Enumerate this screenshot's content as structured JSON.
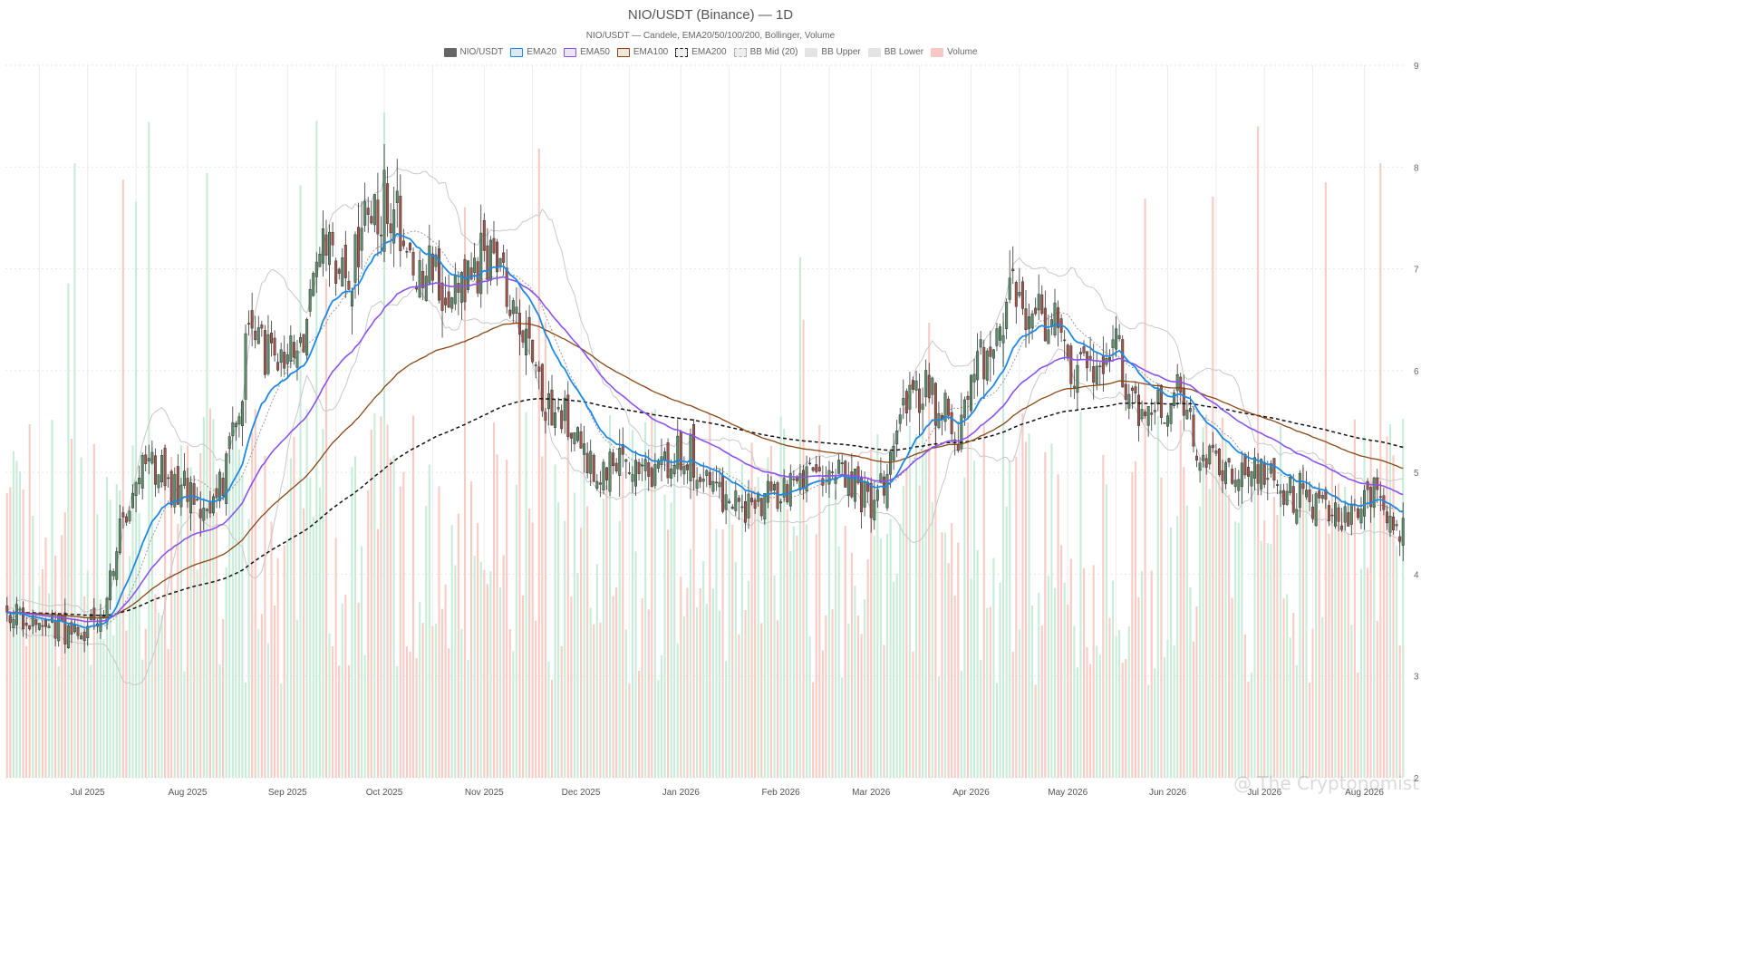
{
  "title": "NIO/USDT (Binance) — 1D",
  "subtitle": "NIO/USDT — Candele, EMA20/50/100/200, Bollinger, Volume",
  "watermark": "@ The Cryptonomist",
  "legend": [
    {
      "label": "NIO/USDT",
      "fill": "#666666",
      "stroke": "#666666",
      "dash": false
    },
    {
      "label": "EMA20",
      "fill": "#dbe9f7",
      "stroke": "#1e88e5",
      "dash": false
    },
    {
      "label": "EMA50",
      "fill": "#ece4fb",
      "stroke": "#8c52f0",
      "dash": false
    },
    {
      "label": "EMA100",
      "fill": "#f1e6de",
      "stroke": "#8b4513",
      "dash": false
    },
    {
      "label": "EMA200",
      "fill": "#eeeeee",
      "stroke": "#111111",
      "dash": true
    },
    {
      "label": "BB Mid (20)",
      "fill": "#eeeeee",
      "stroke": "#aaaaaa",
      "dash": true
    },
    {
      "label": "BB Upper",
      "fill": "#e4e4e4",
      "stroke": "#e4e4e4",
      "dash": false
    },
    {
      "label": "BB Lower",
      "fill": "#e4e4e4",
      "stroke": "#e4e4e4",
      "dash": false
    },
    {
      "label": "Volume",
      "fill": "#f8c9c4",
      "stroke": "#f8c9c4",
      "dash": false
    }
  ],
  "chart_data": {
    "type": "candlestick",
    "x_ticks": [
      "Jul 2025",
      "Aug 2025",
      "Sep 2025",
      "Oct 2025",
      "Nov 2025",
      "Dec 2025",
      "Jan 2026",
      "Feb 2026",
      "Mar 2026",
      "Apr 2026",
      "May 2026",
      "Jun 2026",
      "Jul 2026",
      "Aug 2026"
    ],
    "y_ticks": [
      2,
      3,
      4,
      5,
      6,
      7,
      8,
      9
    ],
    "ylim": [
      2,
      9
    ],
    "axis_position": "right",
    "grid": true,
    "colors": {
      "up": "#5a8f6a",
      "down": "#a4544a",
      "vol_up": "#c9ecd8",
      "vol_down": "#f8cbc5",
      "ema20": "#1e88e5",
      "ema50": "#8c52f0",
      "ema100": "#8b4513",
      "ema200": "#111111",
      "bb_band": "#c8c8c8",
      "bb_mid": "#9a9a9a"
    },
    "close_anchors": [
      {
        "date": "2025-06-10",
        "v": 3.62
      },
      {
        "date": "2025-06-20",
        "v": 3.48
      },
      {
        "date": "2025-06-30",
        "v": 3.5
      },
      {
        "date": "2025-07-05",
        "v": 3.55
      },
      {
        "date": "2025-07-12",
        "v": 4.55
      },
      {
        "date": "2025-07-20",
        "v": 5.1
      },
      {
        "date": "2025-07-28",
        "v": 4.85
      },
      {
        "date": "2025-08-05",
        "v": 4.65
      },
      {
        "date": "2025-08-12",
        "v": 4.9
      },
      {
        "date": "2025-08-20",
        "v": 6.3
      },
      {
        "date": "2025-08-28",
        "v": 6.1
      },
      {
        "date": "2025-09-05",
        "v": 6.2
      },
      {
        "date": "2025-09-12",
        "v": 7.2
      },
      {
        "date": "2025-09-20",
        "v": 7.0
      },
      {
        "date": "2025-09-26",
        "v": 7.7
      },
      {
        "date": "2025-10-05",
        "v": 7.5
      },
      {
        "date": "2025-10-12",
        "v": 6.9
      },
      {
        "date": "2025-10-20",
        "v": 6.85
      },
      {
        "date": "2025-10-28",
        "v": 6.95
      },
      {
        "date": "2025-11-04",
        "v": 7.2
      },
      {
        "date": "2025-11-10",
        "v": 6.7
      },
      {
        "date": "2025-11-15",
        "v": 6.2
      },
      {
        "date": "2025-11-21",
        "v": 5.6
      },
      {
        "date": "2025-11-28",
        "v": 5.5
      },
      {
        "date": "2025-12-05",
        "v": 5.0
      },
      {
        "date": "2025-12-15",
        "v": 5.05
      },
      {
        "date": "2025-12-25",
        "v": 5.05
      },
      {
        "date": "2026-01-05",
        "v": 5.15
      },
      {
        "date": "2026-01-12",
        "v": 4.8
      },
      {
        "date": "2026-01-20",
        "v": 4.6
      },
      {
        "date": "2026-01-30",
        "v": 4.75
      },
      {
        "date": "2026-02-08",
        "v": 4.95
      },
      {
        "date": "2026-02-20",
        "v": 5.1
      },
      {
        "date": "2026-02-28",
        "v": 4.75
      },
      {
        "date": "2026-03-05",
        "v": 4.9
      },
      {
        "date": "2026-03-10",
        "v": 5.6
      },
      {
        "date": "2026-03-18",
        "v": 5.9
      },
      {
        "date": "2026-03-28",
        "v": 5.4
      },
      {
        "date": "2026-04-03",
        "v": 6.05
      },
      {
        "date": "2026-04-10",
        "v": 6.5
      },
      {
        "date": "2026-04-16",
        "v": 6.7
      },
      {
        "date": "2026-04-25",
        "v": 6.45
      },
      {
        "date": "2026-05-05",
        "v": 6.0
      },
      {
        "date": "2026-05-15",
        "v": 6.3
      },
      {
        "date": "2026-05-22",
        "v": 5.6
      },
      {
        "date": "2026-05-30",
        "v": 5.6
      },
      {
        "date": "2026-06-04",
        "v": 5.8
      },
      {
        "date": "2026-06-10",
        "v": 5.25
      },
      {
        "date": "2026-06-20",
        "v": 5.05
      },
      {
        "date": "2026-06-30",
        "v": 5.0
      },
      {
        "date": "2026-07-10",
        "v": 4.8
      },
      {
        "date": "2026-07-20",
        "v": 4.7
      },
      {
        "date": "2026-07-28",
        "v": 4.6
      },
      {
        "date": "2026-08-05",
        "v": 4.75
      },
      {
        "date": "2026-08-10",
        "v": 4.55
      }
    ],
    "last_values": {
      "close": 4.55,
      "ema20": 4.72,
      "ema50": 4.95,
      "ema100": 5.18,
      "ema200": 5.25
    },
    "volume_scale_note": "volume shown as relative bars along the bottom"
  }
}
